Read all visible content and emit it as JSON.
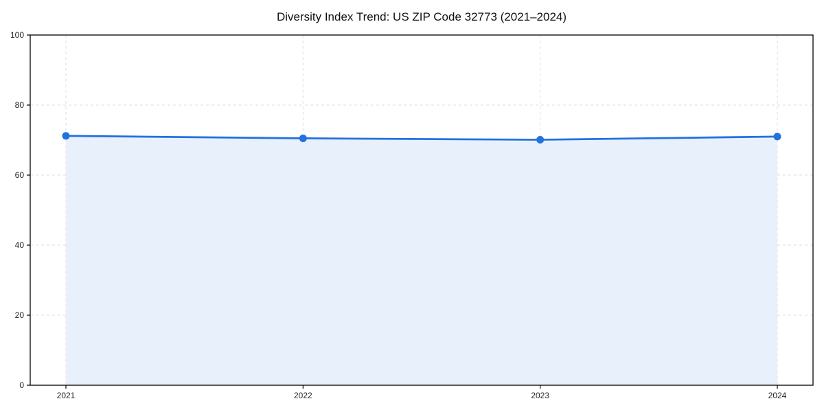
{
  "figure": {
    "background": "#ffffff"
  },
  "chart_data": {
    "type": "line",
    "title": "Diversity Index Trend: US ZIP Code 32773 (2021–2024)",
    "categories": [
      "2021",
      "2022",
      "2023",
      "2024"
    ],
    "series": [
      {
        "name": "Diversity Index",
        "values": [
          71.2,
          70.5,
          70.1,
          71.0
        ]
      }
    ],
    "xlabel": "",
    "ylabel": "",
    "ylim": [
      0,
      100
    ],
    "yticks": [
      0,
      20,
      40,
      60,
      80,
      100
    ],
    "grid": true,
    "grid_style": "dashed",
    "legend": false,
    "area_fill": true,
    "marker": "circle",
    "colors": {
      "line": "#2272e0",
      "marker": "#2272e0",
      "fill": "#e8f0fc",
      "grid": "#dcdcdc",
      "axis": "#000000",
      "tick_label": "#262626",
      "title": "#111111",
      "background": "#ffffff"
    }
  }
}
